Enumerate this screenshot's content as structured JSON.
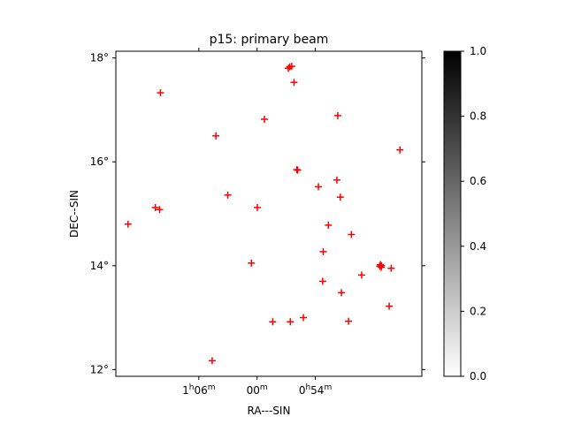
{
  "chart_data": {
    "type": "scatter",
    "title": "p15: primary beam",
    "xlabel": "RA---SIN",
    "ylabel": "DEC--SIN",
    "x_ticks": [
      {
        "v": -2.05,
        "h": "1",
        "m": "06",
        "hm": true
      },
      {
        "v": 0.0,
        "h": "",
        "m": "00",
        "hm": false
      },
      {
        "v": 2.05,
        "h": "0",
        "m": "54",
        "hm": true
      }
    ],
    "y_ticks": [
      {
        "v": 12,
        "label": "12°"
      },
      {
        "v": 14,
        "label": "14°"
      },
      {
        "v": 16,
        "label": "16°"
      },
      {
        "v": 18,
        "label": "18°"
      }
    ],
    "xlim": [
      -4.97,
      5.8
    ],
    "ylim": [
      11.87,
      18.13
    ],
    "marker_color": "#ff0000",
    "points": [
      [
        -4.54,
        14.8
      ],
      [
        -3.58,
        15.12
      ],
      [
        -3.4,
        17.33
      ],
      [
        -3.43,
        15.08
      ],
      [
        -1.45,
        16.5
      ],
      [
        -1.03,
        15.36
      ],
      [
        -1.58,
        12.17
      ],
      [
        -0.2,
        14.05
      ],
      [
        0.01,
        15.12
      ],
      [
        0.26,
        16.82
      ],
      [
        0.55,
        12.92
      ],
      [
        1.1,
        17.8
      ],
      [
        1.22,
        17.84
      ],
      [
        1.15,
        17.83
      ],
      [
        1.3,
        17.53
      ],
      [
        1.43,
        15.84
      ],
      [
        1.4,
        15.85
      ],
      [
        1.63,
        13.0
      ],
      [
        1.17,
        12.92
      ],
      [
        2.16,
        15.52
      ],
      [
        2.33,
        14.27
      ],
      [
        2.31,
        13.7
      ],
      [
        2.51,
        14.78
      ],
      [
        2.84,
        16.89
      ],
      [
        2.81,
        15.65
      ],
      [
        2.93,
        15.32
      ],
      [
        2.97,
        13.48
      ],
      [
        3.22,
        12.93
      ],
      [
        3.32,
        14.6
      ],
      [
        3.68,
        13.82
      ],
      [
        4.34,
        14.02
      ],
      [
        4.37,
        13.97
      ],
      [
        4.32,
        13.99
      ],
      [
        4.38,
        14.0
      ],
      [
        4.72,
        13.95
      ],
      [
        4.65,
        13.22
      ],
      [
        5.03,
        16.23
      ]
    ],
    "colorbar": {
      "min": 0.0,
      "max": 1.0,
      "ticks": [
        "0.0",
        "0.2",
        "0.4",
        "0.6",
        "0.8",
        "1.0"
      ],
      "colormap": "gray_r"
    }
  }
}
